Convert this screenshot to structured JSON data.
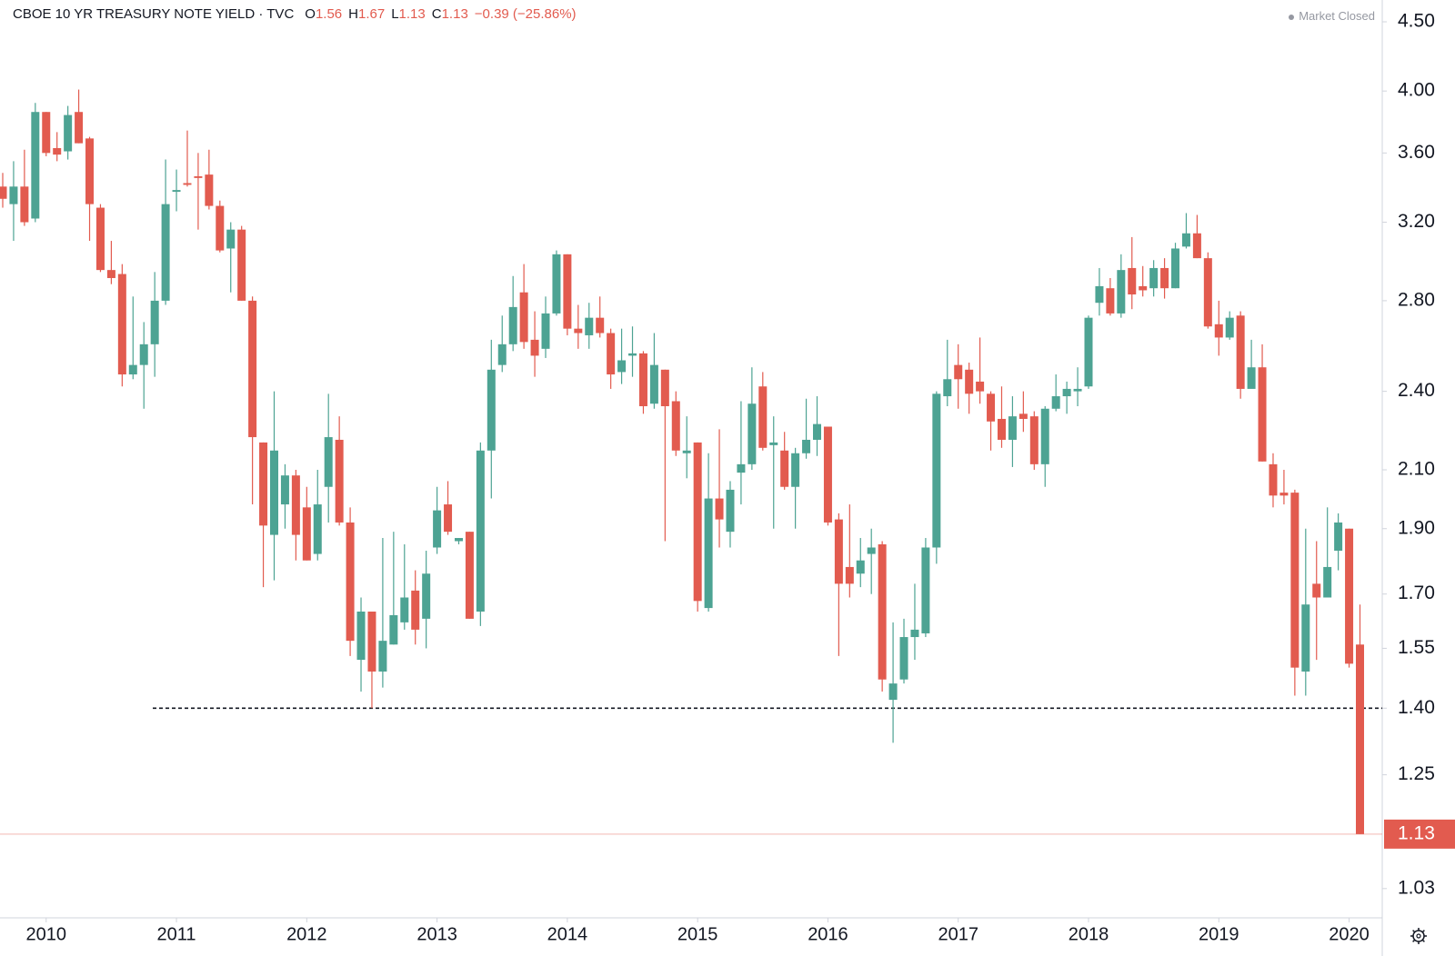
{
  "chart_data": {
    "type": "candlestick",
    "title": "CBOE 10 YR TREASURY NOTE YIELD · TVC",
    "market_status": "Market Closed",
    "ohlc_legend": [
      {
        "label": "O",
        "value": 1.56
      },
      {
        "label": "H",
        "value": 1.67
      },
      {
        "label": "L",
        "value": 1.13
      },
      {
        "label": "C",
        "value": 1.13
      }
    ],
    "change": "−0.39 (−25.86%)",
    "categories": [
      null,
      null,
      null,
      null,
      "2010",
      null,
      null,
      null,
      null,
      null,
      null,
      null,
      null,
      null,
      null,
      null,
      "2011",
      null,
      null,
      null,
      null,
      null,
      null,
      null,
      null,
      null,
      null,
      null,
      "2012",
      null,
      null,
      null,
      null,
      null,
      null,
      null,
      null,
      null,
      null,
      null,
      "2013",
      null,
      null,
      null,
      null,
      null,
      null,
      null,
      null,
      null,
      null,
      null,
      "2014",
      null,
      null,
      null,
      null,
      null,
      null,
      null,
      null,
      null,
      null,
      null,
      "2015",
      null,
      null,
      null,
      null,
      null,
      null,
      null,
      null,
      null,
      null,
      null,
      "2016",
      null,
      null,
      null,
      null,
      null,
      null,
      null,
      null,
      null,
      null,
      null,
      "2017",
      null,
      null,
      null,
      null,
      null,
      null,
      null,
      null,
      null,
      null,
      null,
      "2018",
      null,
      null,
      null,
      null,
      null,
      null,
      null,
      null,
      null,
      null,
      null,
      "2019",
      null,
      null,
      null,
      null,
      null,
      null,
      null,
      null,
      null,
      null,
      null,
      "2020",
      null
    ],
    "open": [
      3.4,
      3.3,
      3.4,
      3.22,
      3.86,
      3.63,
      3.61,
      3.86,
      3.69,
      3.28,
      2.95,
      2.93,
      2.47,
      2.51,
      2.6,
      2.8,
      3.37,
      3.42,
      3.46,
      3.47,
      3.29,
      3.06,
      3.16,
      2.8,
      2.2,
      1.88,
      1.98,
      2.08,
      1.97,
      1.82,
      2.04,
      2.21,
      1.92,
      1.52,
      1.65,
      1.49,
      1.56,
      1.62,
      1.71,
      1.63,
      1.84,
      1.98,
      1.86,
      1.89,
      1.65,
      2.17,
      2.51,
      2.6,
      2.84,
      2.62,
      2.58,
      2.74,
      3.03,
      2.67,
      2.64,
      2.72,
      2.65,
      2.48,
      2.55,
      2.56,
      2.35,
      2.49,
      2.36,
      2.16,
      2.2,
      1.66,
      2.0,
      1.89,
      2.09,
      2.12,
      2.42,
      2.19,
      2.17,
      2.04,
      2.16,
      2.21,
      2.26,
      1.93,
      1.78,
      1.76,
      1.82,
      1.85,
      1.42,
      1.47,
      1.58,
      1.59,
      1.84,
      2.38,
      2.51,
      2.49,
      2.44,
      2.39,
      2.29,
      2.21,
      2.31,
      2.3,
      2.12,
      2.33,
      2.38,
      2.4,
      2.42,
      2.79,
      2.86,
      2.74,
      2.96,
      2.87,
      2.86,
      2.96,
      2.86,
      3.07,
      3.14,
      3.01,
      2.69,
      2.63,
      2.73,
      2.41,
      2.5,
      2.12,
      2.02,
      2.02,
      1.49,
      1.73,
      1.69,
      1.83,
      1.9,
      1.56
    ],
    "high": [
      3.48,
      3.55,
      3.62,
      3.92,
      3.86,
      3.73,
      3.9,
      4.01,
      3.7,
      3.3,
      3.1,
      2.98,
      2.82,
      2.7,
      2.94,
      3.56,
      3.5,
      3.74,
      3.6,
      3.62,
      3.32,
      3.2,
      3.18,
      2.82,
      2.2,
      2.4,
      2.12,
      2.1,
      2.04,
      2.1,
      2.39,
      2.3,
      1.97,
      1.69,
      1.65,
      1.87,
      1.89,
      1.85,
      1.77,
      1.83,
      2.04,
      2.06,
      1.87,
      1.89,
      2.2,
      2.62,
      2.73,
      2.92,
      2.98,
      2.75,
      2.82,
      3.05,
      3.03,
      2.78,
      2.79,
      2.82,
      2.67,
      2.67,
      2.68,
      2.57,
      2.65,
      2.49,
      2.4,
      2.3,
      2.2,
      2.16,
      2.25,
      2.06,
      2.36,
      2.5,
      2.48,
      2.3,
      2.24,
      2.18,
      2.37,
      2.38,
      2.26,
      1.95,
      1.98,
      1.87,
      1.9,
      1.86,
      1.62,
      1.63,
      1.73,
      1.87,
      2.4,
      2.62,
      2.6,
      2.52,
      2.63,
      2.4,
      2.42,
      2.38,
      2.4,
      2.32,
      2.34,
      2.47,
      2.44,
      2.5,
      2.73,
      2.96,
      2.91,
      3.03,
      3.12,
      2.97,
      3.0,
      3.01,
      3.09,
      3.25,
      3.24,
      3.04,
      2.8,
      2.75,
      2.75,
      2.62,
      2.6,
      2.16,
      2.1,
      2.03,
      1.9,
      1.86,
      1.97,
      1.95,
      1.9,
      1.67
    ],
    "low": [
      3.28,
      3.1,
      3.18,
      3.2,
      3.58,
      3.55,
      3.56,
      3.66,
      3.1,
      2.94,
      2.88,
      2.42,
      2.45,
      2.33,
      2.46,
      2.78,
      3.26,
      3.4,
      3.16,
      3.27,
      3.04,
      2.84,
      2.8,
      1.98,
      1.72,
      1.74,
      1.9,
      1.8,
      1.8,
      1.8,
      1.92,
      1.91,
      1.53,
      1.44,
      1.4,
      1.45,
      1.56,
      1.6,
      1.56,
      1.55,
      1.82,
      1.88,
      1.85,
      1.63,
      1.61,
      2.0,
      2.48,
      2.57,
      2.58,
      2.46,
      2.54,
      2.73,
      2.64,
      2.58,
      2.58,
      2.63,
      2.41,
      2.43,
      2.46,
      2.31,
      2.33,
      1.86,
      2.15,
      2.07,
      1.65,
      1.65,
      1.84,
      1.84,
      1.98,
      2.1,
      2.17,
      1.9,
      2.03,
      1.9,
      2.14,
      2.15,
      1.91,
      1.53,
      1.69,
      1.72,
      1.7,
      1.44,
      1.32,
      1.46,
      1.52,
      1.58,
      1.79,
      2.34,
      2.33,
      2.31,
      2.35,
      2.17,
      2.18,
      2.11,
      2.24,
      2.1,
      2.04,
      2.32,
      2.31,
      2.34,
      2.41,
      2.73,
      2.73,
      2.72,
      2.76,
      2.82,
      2.82,
      2.81,
      2.86,
      3.06,
      3.01,
      2.67,
      2.55,
      2.62,
      2.37,
      2.43,
      2.13,
      1.97,
      1.98,
      1.43,
      1.43,
      1.52,
      1.69,
      1.77,
      1.5,
      1.13
    ],
    "close": [
      3.33,
      3.4,
      3.2,
      3.86,
      3.6,
      3.59,
      3.84,
      3.66,
      3.3,
      2.95,
      2.91,
      2.47,
      2.51,
      2.6,
      2.8,
      3.3,
      3.38,
      3.41,
      3.45,
      3.29,
      3.05,
      3.16,
      2.8,
      2.22,
      1.91,
      2.17,
      2.08,
      1.88,
      1.8,
      1.98,
      2.22,
      1.92,
      1.57,
      1.65,
      1.49,
      1.57,
      1.64,
      1.69,
      1.6,
      1.76,
      1.96,
      1.89,
      1.87,
      1.63,
      2.17,
      2.49,
      2.6,
      2.77,
      2.61,
      2.55,
      2.74,
      3.03,
      2.67,
      2.65,
      2.72,
      2.65,
      2.47,
      2.53,
      2.56,
      2.34,
      2.51,
      2.34,
      2.17,
      2.17,
      1.68,
      2.0,
      1.93,
      2.03,
      2.12,
      2.35,
      2.18,
      2.2,
      2.04,
      2.16,
      2.21,
      2.27,
      1.92,
      1.73,
      1.73,
      1.8,
      1.84,
      1.47,
      1.46,
      1.58,
      1.6,
      1.84,
      2.39,
      2.45,
      2.45,
      2.39,
      2.4,
      2.28,
      2.21,
      2.3,
      2.29,
      2.12,
      2.33,
      2.38,
      2.41,
      2.41,
      2.72,
      2.87,
      2.74,
      2.95,
      2.83,
      2.85,
      2.96,
      2.86,
      3.06,
      3.14,
      3.01,
      2.68,
      2.63,
      2.72,
      2.41,
      2.5,
      2.13,
      2.01,
      2.01,
      1.5,
      1.67,
      1.69,
      1.78,
      1.92,
      1.51,
      1.13
    ],
    "up_color": "#4da393",
    "down_color": "#e25b4f",
    "log_scale": true,
    "grid": false,
    "ylim": [
      0.98,
      4.67
    ],
    "yticks": [
      1.03,
      1.25,
      {
        "value": 1.4,
        "label": "1.40"
      },
      1.55,
      {
        "value": 1.7,
        "label": "1.70"
      },
      {
        "value": 1.9,
        "label": "1.90"
      },
      {
        "value": 2.1,
        "label": "2.10"
      },
      {
        "value": 2.4,
        "label": "2.40"
      },
      {
        "value": 2.8,
        "label": "2.80"
      },
      {
        "value": 3.2,
        "label": "3.20"
      },
      {
        "value": 3.6,
        "label": "3.60"
      },
      {
        "value": 4,
        "label": "4.00"
      },
      {
        "value": 4.5,
        "label": "4.50"
      }
    ],
    "reference_line": {
      "value": 1.4,
      "style": "dashed",
      "color": "#131722"
    },
    "last_price": 1.13,
    "last_price_color": "#e25b4f"
  }
}
